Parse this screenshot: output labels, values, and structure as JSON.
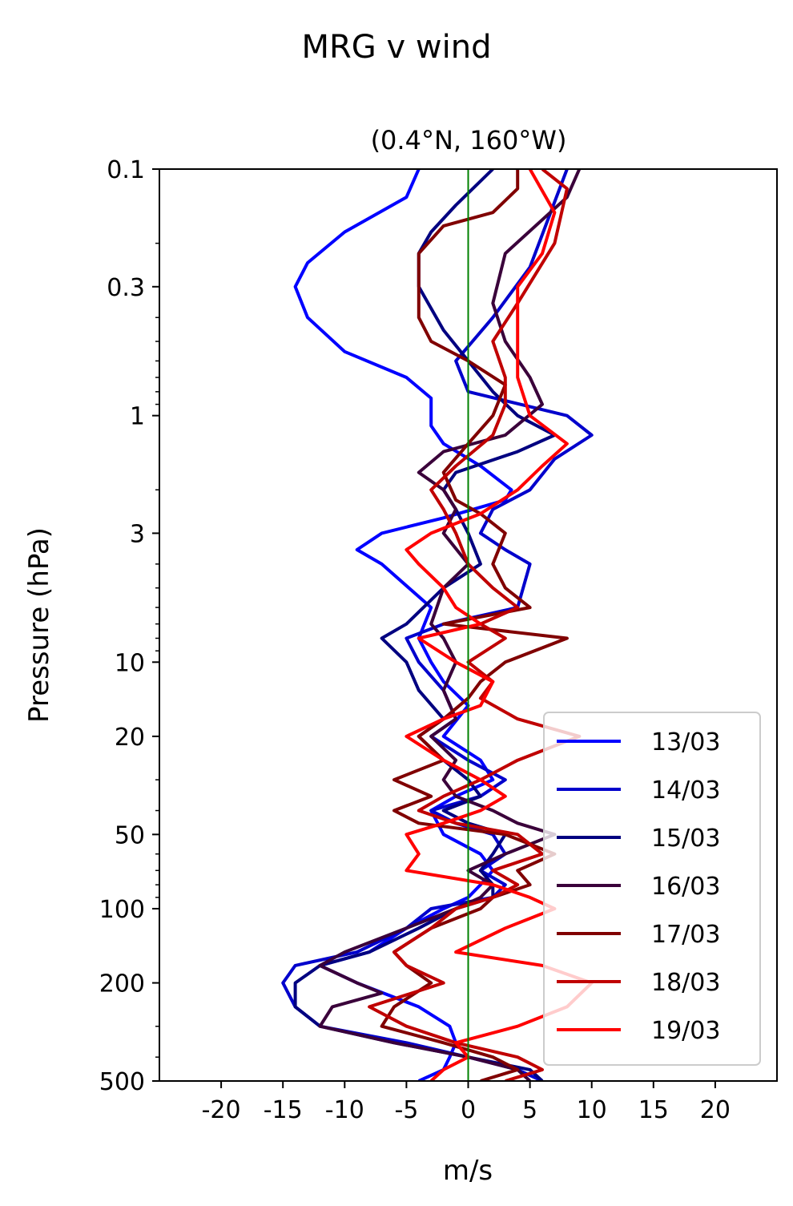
{
  "figure": {
    "suptitle": "MRG v wind",
    "subtitle": "(0.4°N, 160°W)"
  },
  "chart_data": {
    "type": "line",
    "title": "(0.4°N, 160°W)",
    "xlabel": "m/s",
    "ylabel": "Pressure (hPa)",
    "xlim": [
      -25,
      25
    ],
    "ylim": [
      500,
      0.1
    ],
    "yscale": "log",
    "x_ticks": [
      -20,
      -15,
      -10,
      -5,
      0,
      5,
      10,
      15,
      20
    ],
    "x_tick_labels": [
      "-20",
      "-15",
      "-10",
      "-5",
      "0",
      "5",
      "10",
      "15",
      "20"
    ],
    "y_ticks": [
      0.1,
      0.3,
      1,
      3,
      10,
      20,
      50,
      100,
      200,
      500
    ],
    "y_tick_labels": [
      "0.1",
      "0.3",
      "1",
      "3",
      "10",
      "20",
      "50",
      "100",
      "200",
      "500"
    ],
    "zero_line": {
      "x": 0,
      "color": "#008000"
    },
    "grid": false,
    "legend_position": "lower-right",
    "series": [
      {
        "name": "13/03",
        "color": "#0000ff",
        "points": [
          [
            -4,
            500
          ],
          [
            -2,
            450
          ],
          [
            -1.5,
            400
          ],
          [
            -1,
            350
          ],
          [
            -1.5,
            300
          ],
          [
            -4,
            250
          ],
          [
            -9,
            200
          ],
          [
            -12,
            170
          ],
          [
            -8,
            150
          ],
          [
            -5,
            120
          ],
          [
            -2,
            100
          ],
          [
            0,
            90
          ],
          [
            1,
            80
          ],
          [
            2,
            70
          ],
          [
            1,
            60
          ],
          [
            -2,
            50
          ],
          [
            -3,
            40
          ],
          [
            -1,
            35
          ],
          [
            2,
            30
          ],
          [
            1,
            25
          ],
          [
            -2,
            20
          ],
          [
            0,
            15
          ],
          [
            -2,
            12
          ],
          [
            -3,
            10
          ],
          [
            -4,
            8
          ],
          [
            -3,
            6
          ],
          [
            -7,
            4
          ],
          [
            -9,
            3.5
          ],
          [
            -7,
            3
          ],
          [
            -2,
            2.6
          ],
          [
            3,
            2.2
          ],
          [
            3.5,
            2
          ],
          [
            1,
            1.6
          ],
          [
            -2,
            1.3
          ],
          [
            -3,
            1.1
          ],
          [
            -3,
            0.85
          ],
          [
            -5,
            0.7
          ],
          [
            -10,
            0.55
          ],
          [
            -13,
            0.4
          ],
          [
            -14,
            0.3
          ],
          [
            -13,
            0.24
          ],
          [
            -10,
            0.18
          ],
          [
            -5,
            0.13
          ],
          [
            -4,
            0.1
          ]
        ]
      },
      {
        "name": "14/03",
        "color": "#0000cc",
        "points": [
          [
            6,
            500
          ],
          [
            4,
            450
          ],
          [
            0,
            400
          ],
          [
            -5,
            350
          ],
          [
            -12,
            300
          ],
          [
            -14,
            250
          ],
          [
            -15,
            200
          ],
          [
            -14,
            170
          ],
          [
            -9,
            150
          ],
          [
            -5,
            120
          ],
          [
            -3,
            100
          ],
          [
            2,
            90
          ],
          [
            3,
            80
          ],
          [
            1,
            70
          ],
          [
            3,
            60
          ],
          [
            2,
            50
          ],
          [
            -1,
            45
          ],
          [
            -3,
            40
          ],
          [
            1,
            35
          ],
          [
            3,
            30
          ],
          [
            0,
            25
          ],
          [
            -3,
            20
          ],
          [
            -1,
            17
          ],
          [
            -2,
            13
          ],
          [
            -4,
            10
          ],
          [
            -5,
            8
          ],
          [
            -2,
            7
          ],
          [
            4,
            6
          ],
          [
            5,
            4
          ],
          [
            3,
            3.5
          ],
          [
            1,
            3
          ],
          [
            2,
            2.4
          ],
          [
            5,
            2
          ],
          [
            7,
            1.5
          ],
          [
            10,
            1.2
          ],
          [
            8,
            1
          ],
          [
            0,
            0.8
          ],
          [
            -1,
            0.6
          ],
          [
            2,
            0.4
          ],
          [
            5,
            0.25
          ],
          [
            8,
            0.1
          ]
        ]
      },
      {
        "name": "15/03",
        "color": "#000080",
        "points": [
          [
            6,
            500
          ],
          [
            5,
            450
          ],
          [
            0,
            400
          ],
          [
            -6,
            350
          ],
          [
            -12,
            300
          ],
          [
            -14,
            250
          ],
          [
            -14,
            200
          ],
          [
            -12,
            170
          ],
          [
            -8,
            150
          ],
          [
            -4,
            120
          ],
          [
            -1,
            100
          ],
          [
            2,
            90
          ],
          [
            2,
            80
          ],
          [
            1,
            70
          ],
          [
            2,
            60
          ],
          [
            3,
            50
          ],
          [
            0,
            45
          ],
          [
            -2,
            40
          ],
          [
            1,
            35
          ],
          [
            0,
            30
          ],
          [
            -2,
            25
          ],
          [
            -4,
            20
          ],
          [
            -2,
            17
          ],
          [
            -4,
            13
          ],
          [
            -5,
            10
          ],
          [
            -7,
            8
          ],
          [
            -5,
            7
          ],
          [
            -2,
            5
          ],
          [
            1,
            4
          ],
          [
            0,
            3
          ],
          [
            -1,
            2.4
          ],
          [
            -2,
            2
          ],
          [
            -1,
            1.7
          ],
          [
            4,
            1.4
          ],
          [
            7,
            1.2
          ],
          [
            4,
            1
          ],
          [
            2,
            0.8
          ],
          [
            0,
            0.6
          ],
          [
            -2,
            0.45
          ],
          [
            -4,
            0.3
          ],
          [
            -4,
            0.22
          ],
          [
            -3,
            0.18
          ],
          [
            -1,
            0.14
          ],
          [
            2,
            0.1
          ]
        ]
      },
      {
        "name": "16/03",
        "color": "#3a003a",
        "points": [
          [
            5,
            500
          ],
          [
            4,
            450
          ],
          [
            0,
            400
          ],
          [
            -6,
            350
          ],
          [
            -12,
            300
          ],
          [
            -11,
            250
          ],
          [
            -7,
            220
          ],
          [
            -9,
            200
          ],
          [
            -12,
            170
          ],
          [
            -10,
            150
          ],
          [
            -5,
            120
          ],
          [
            -1,
            100
          ],
          [
            1,
            90
          ],
          [
            2,
            80
          ],
          [
            0,
            70
          ],
          [
            3,
            60
          ],
          [
            7,
            50
          ],
          [
            4,
            45
          ],
          [
            2,
            40
          ],
          [
            -1,
            35
          ],
          [
            -2,
            30
          ],
          [
            -1,
            25
          ],
          [
            -3,
            20
          ],
          [
            -1,
            17
          ],
          [
            -2,
            13
          ],
          [
            -1,
            10
          ],
          [
            -2,
            8
          ],
          [
            -3,
            7
          ],
          [
            -2,
            5
          ],
          [
            0,
            4
          ],
          [
            -2,
            3
          ],
          [
            -1,
            2.4
          ],
          [
            -2,
            2
          ],
          [
            -4,
            1.7
          ],
          [
            -2,
            1.4
          ],
          [
            3,
            1.2
          ],
          [
            6,
            0.9
          ],
          [
            5,
            0.7
          ],
          [
            3,
            0.5
          ],
          [
            2,
            0.35
          ],
          [
            3,
            0.22
          ],
          [
            8,
            0.13
          ],
          [
            9,
            0.1
          ]
        ]
      },
      {
        "name": "17/03",
        "color": "#800000",
        "points": [
          [
            1,
            500
          ],
          [
            4,
            450
          ],
          [
            2,
            400
          ],
          [
            -2,
            350
          ],
          [
            -7,
            300
          ],
          [
            -6,
            250
          ],
          [
            -3,
            200
          ],
          [
            -5,
            170
          ],
          [
            -6,
            150
          ],
          [
            -3,
            120
          ],
          [
            1,
            100
          ],
          [
            2,
            90
          ],
          [
            5,
            80
          ],
          [
            4,
            70
          ],
          [
            7,
            60
          ],
          [
            3,
            50
          ],
          [
            -4,
            45
          ],
          [
            -6,
            40
          ],
          [
            -3,
            35
          ],
          [
            -6,
            30
          ],
          [
            -2,
            25
          ],
          [
            -4,
            20
          ],
          [
            -2,
            17
          ],
          [
            0,
            14
          ],
          [
            1,
            12
          ],
          [
            3,
            10
          ],
          [
            8,
            8
          ],
          [
            -2,
            7
          ],
          [
            5,
            6
          ],
          [
            3,
            5
          ],
          [
            2,
            4
          ],
          [
            3,
            3
          ],
          [
            1,
            2.5
          ],
          [
            -1,
            2.2
          ],
          [
            -2,
            1.7
          ],
          [
            0,
            1.3
          ],
          [
            2,
            1
          ],
          [
            3,
            0.75
          ],
          [
            0,
            0.6
          ],
          [
            -3,
            0.5
          ],
          [
            -4,
            0.4
          ],
          [
            -4,
            0.22
          ],
          [
            -2,
            0.17
          ],
          [
            2,
            0.15
          ],
          [
            4,
            0.12
          ],
          [
            4,
            0.1
          ]
        ]
      },
      {
        "name": "18/03",
        "color": "#c00000",
        "points": [
          [
            3,
            500
          ],
          [
            6,
            450
          ],
          [
            4,
            400
          ],
          [
            -1,
            350
          ],
          [
            -5,
            300
          ],
          [
            -8,
            250
          ],
          [
            -2,
            200
          ],
          [
            -5,
            170
          ],
          [
            -6,
            150
          ],
          [
            -3,
            120
          ],
          [
            -1,
            100
          ],
          [
            2,
            90
          ],
          [
            4,
            80
          ],
          [
            2,
            70
          ],
          [
            6,
            60
          ],
          [
            4,
            50
          ],
          [
            -1,
            45
          ],
          [
            -4,
            40
          ],
          [
            -2,
            35
          ],
          [
            1,
            30
          ],
          [
            4,
            25
          ],
          [
            9,
            20
          ],
          [
            4,
            17
          ],
          [
            1,
            14
          ],
          [
            2,
            12
          ],
          [
            0,
            10
          ],
          [
            3,
            8
          ],
          [
            1,
            7
          ],
          [
            4,
            6
          ],
          [
            2,
            5
          ],
          [
            0,
            4
          ],
          [
            -1,
            3
          ],
          [
            -2,
            2.4
          ],
          [
            -3,
            2
          ],
          [
            -1,
            1.6
          ],
          [
            2,
            1.2
          ],
          [
            3,
            0.9
          ],
          [
            3,
            0.7
          ],
          [
            2,
            0.5
          ],
          [
            4,
            0.35
          ],
          [
            7,
            0.2
          ],
          [
            8,
            0.12
          ],
          [
            6,
            0.1
          ]
        ]
      },
      {
        "name": "19/03",
        "color": "#ff0000",
        "points": [
          [
            -3,
            500
          ],
          [
            -2,
            450
          ],
          [
            0,
            400
          ],
          [
            -1,
            350
          ],
          [
            4,
            300
          ],
          [
            8,
            250
          ],
          [
            10,
            200
          ],
          [
            6,
            170
          ],
          [
            -1,
            150
          ],
          [
            3,
            120
          ],
          [
            7,
            100
          ],
          [
            5,
            90
          ],
          [
            2,
            80
          ],
          [
            -5,
            70
          ],
          [
            -4,
            60
          ],
          [
            -5,
            50
          ],
          [
            -2,
            45
          ],
          [
            1,
            40
          ],
          [
            3,
            35
          ],
          [
            1,
            30
          ],
          [
            -2,
            25
          ],
          [
            -5,
            20
          ],
          [
            -2,
            17
          ],
          [
            1,
            15
          ],
          [
            2,
            12
          ],
          [
            -1,
            10
          ],
          [
            -4,
            8
          ],
          [
            1,
            7
          ],
          [
            -1,
            6
          ],
          [
            -2,
            5
          ],
          [
            -4,
            4
          ],
          [
            -5,
            3.5
          ],
          [
            -3,
            3
          ],
          [
            1,
            2.5
          ],
          [
            4,
            2
          ],
          [
            6,
            1.6
          ],
          [
            8,
            1.3
          ],
          [
            5,
            1
          ],
          [
            4,
            0.7
          ],
          [
            4,
            0.45
          ],
          [
            4,
            0.3
          ],
          [
            6,
            0.22
          ],
          [
            7,
            0.15
          ],
          [
            5,
            0.1
          ]
        ]
      }
    ]
  }
}
